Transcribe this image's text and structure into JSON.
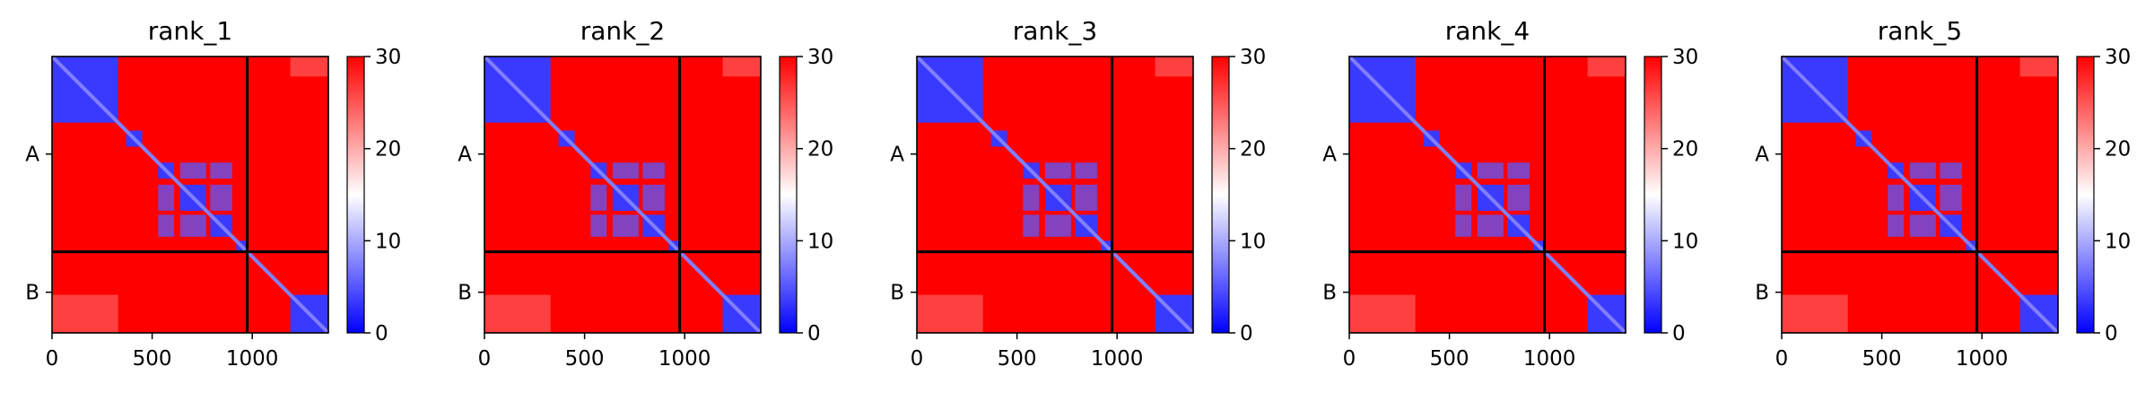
{
  "chart_data": {
    "type": "heatmap",
    "panels": [
      {
        "title": "rank_1"
      },
      {
        "title": "rank_2"
      },
      {
        "title": "rank_3"
      },
      {
        "title": "rank_4"
      },
      {
        "title": "rank_5"
      }
    ],
    "xlim": [
      0,
      1380
    ],
    "x_ticks": [
      0,
      500,
      1000
    ],
    "x_tick_labels": [
      "0",
      "500",
      "1000"
    ],
    "y_tick_labels": [
      "A",
      "B"
    ],
    "chain_boundary": 975,
    "chain_A_center": 487,
    "chain_B_center": 1177,
    "colorbar": {
      "min": 0,
      "max": 30,
      "ticks": [
        0,
        10,
        20,
        30
      ],
      "tick_labels": [
        "0",
        "10",
        "20",
        "30"
      ],
      "colormap": [
        "#0000ff",
        "#ffffff",
        "#ff0000"
      ]
    },
    "low_value_blocks": [
      [
        0,
        330,
        0,
        330
      ],
      [
        370,
        450,
        370,
        450
      ],
      [
        530,
        610,
        530,
        610
      ],
      [
        640,
        770,
        640,
        770
      ],
      [
        790,
        900,
        790,
        900
      ],
      [
        920,
        975,
        920,
        975
      ],
      [
        1190,
        1380,
        1190,
        1380
      ]
    ]
  }
}
